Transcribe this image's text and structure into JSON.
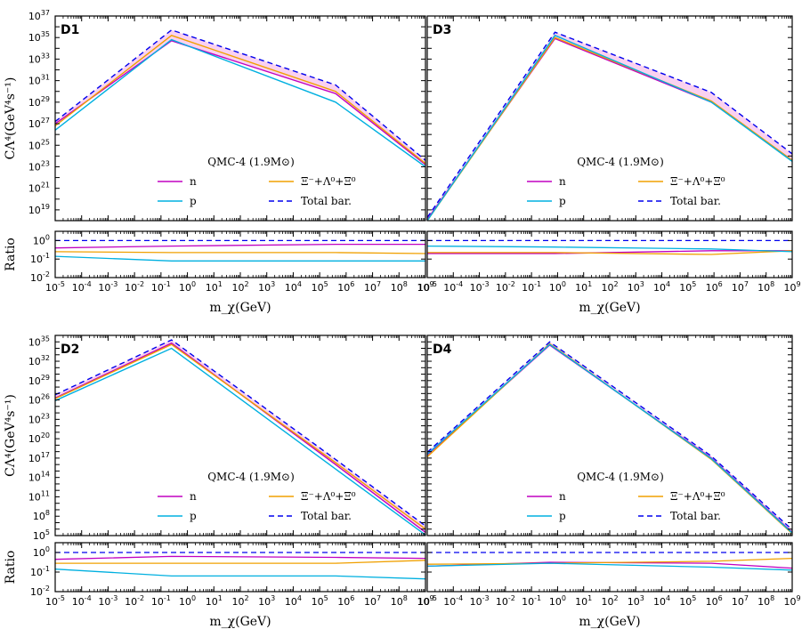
{
  "chart_data": [
    {
      "panel": "D1",
      "type": "line",
      "title": "QMC-4 (1.9M⊙)",
      "xlabel": "m_χ(GeV)",
      "ylabel": "CΛ⁴(GeV⁴s⁻¹)",
      "ratio_label": "Ratio",
      "xscale": "log",
      "yscale": "log",
      "xlim_exp": [
        -5,
        9
      ],
      "ylim_exp": [
        18,
        37
      ],
      "ratio_ylim_exp": [
        -2,
        0.5
      ],
      "x_exp": [
        -5,
        -0.6,
        5.6,
        9
      ],
      "series": [
        {
          "name": "n",
          "color": "#c000c0",
          "y_exp": [
            27.0,
            34.7,
            29.8,
            23.2
          ]
        },
        {
          "name": "Ξ⁻+Λ⁰+Ξ⁰",
          "color": "#f0a000",
          "y_exp": [
            26.8,
            35.2,
            30.0,
            23.3
          ]
        },
        {
          "name": "p",
          "color": "#00b0e0",
          "y_exp": [
            26.4,
            34.8,
            29.0,
            23.0
          ]
        },
        {
          "name": "Total bar.",
          "color": "#0000ee",
          "dashed": true,
          "y_exp": [
            27.2,
            35.7,
            30.6,
            23.6
          ]
        }
      ],
      "ratio_series": [
        {
          "name": "n",
          "y_exp": [
            -0.4,
            -0.3,
            -0.2,
            -0.2
          ]
        },
        {
          "name": "Ξ⁻+Λ⁰+Ξ⁰",
          "y_exp": [
            -0.6,
            -0.65,
            -0.65,
            -0.7
          ]
        },
        {
          "name": "p",
          "y_exp": [
            -0.85,
            -1.1,
            -1.1,
            -1.1
          ]
        },
        {
          "name": "Total bar.",
          "y_exp": [
            0.0,
            0.0,
            0.0,
            0.0
          ]
        }
      ],
      "legend": {
        "labels": [
          "n",
          "Ξ⁻+Λ⁰+Ξ⁰",
          "p",
          "Total bar."
        ]
      }
    },
    {
      "panel": "D3",
      "type": "line",
      "title": "QMC-4 (1.9M⊙)",
      "xlabel": "m_χ(GeV)",
      "ylabel": "",
      "ratio_label": "",
      "xscale": "log",
      "yscale": "log",
      "xlim_exp": [
        -5,
        9
      ],
      "ylim_exp": [
        18,
        37
      ],
      "ratio_ylim_exp": [
        -2,
        0.5
      ],
      "x_exp": [
        -5,
        -0.1,
        5.9,
        9
      ],
      "series": [
        {
          "name": "n",
          "color": "#c000c0",
          "y_exp": [
            18.1,
            34.9,
            29.0,
            23.6
          ]
        },
        {
          "name": "Ξ⁻+Λ⁰+Ξ⁰",
          "color": "#f0a000",
          "y_exp": [
            18.0,
            35.0,
            29.1,
            23.6
          ]
        },
        {
          "name": "p",
          "color": "#00b0e0",
          "y_exp": [
            18.0,
            35.2,
            29.0,
            23.5
          ]
        },
        {
          "name": "Total bar.",
          "color": "#0000ee",
          "dashed": true,
          "y_exp": [
            18.3,
            35.5,
            29.9,
            24.2
          ]
        }
      ],
      "ratio_series": [
        {
          "name": "n",
          "y_exp": [
            -0.7,
            -0.7,
            -0.55,
            -0.55
          ]
        },
        {
          "name": "Ξ⁻+Λ⁰+Ξ⁰",
          "y_exp": [
            -0.65,
            -0.65,
            -0.75,
            -0.55
          ]
        },
        {
          "name": "p",
          "y_exp": [
            -0.3,
            -0.35,
            -0.45,
            -0.6
          ]
        },
        {
          "name": "Total bar.",
          "y_exp": [
            0.0,
            0.0,
            0.0,
            0.0
          ]
        }
      ],
      "legend": {
        "labels": [
          "n",
          "Ξ⁻+Λ⁰+Ξ⁰",
          "p",
          "Total bar."
        ]
      }
    },
    {
      "panel": "D2",
      "type": "line",
      "title": "QMC-4 (1.9M⊙)",
      "xlabel": "m_χ(GeV)",
      "ylabel": "CΛ⁴(GeV⁴s⁻¹)",
      "ratio_label": "Ratio",
      "xscale": "log",
      "yscale": "log",
      "xlim_exp": [
        -5,
        9
      ],
      "ylim_exp": [
        5,
        36
      ],
      "ratio_ylim_exp": [
        -2,
        0.5
      ],
      "x_exp": [
        -5,
        -0.6,
        5.6,
        9
      ],
      "series": [
        {
          "name": "n",
          "color": "#c000c0",
          "y_exp": [
            26.3,
            34.8,
            16.0,
            5.5
          ]
        },
        {
          "name": "Ξ⁻+Λ⁰+Ξ⁰",
          "color": "#f0a000",
          "y_exp": [
            26.2,
            34.6,
            16.3,
            6.0
          ]
        },
        {
          "name": "p",
          "color": "#00b0e0",
          "y_exp": [
            25.9,
            34.0,
            15.3,
            5.1
          ]
        },
        {
          "name": "Total bar.",
          "color": "#0000ee",
          "dashed": true,
          "y_exp": [
            26.8,
            35.3,
            16.8,
            6.5
          ]
        }
      ],
      "ratio_series": [
        {
          "name": "n",
          "y_exp": [
            -0.35,
            -0.2,
            -0.25,
            -0.3
          ]
        },
        {
          "name": "Ξ⁻+Λ⁰+Ξ⁰",
          "y_exp": [
            -0.55,
            -0.55,
            -0.55,
            -0.4
          ]
        },
        {
          "name": "p",
          "y_exp": [
            -0.85,
            -1.2,
            -1.2,
            -1.35
          ]
        },
        {
          "name": "Total bar.",
          "y_exp": [
            0.0,
            0.0,
            0.0,
            0.0
          ]
        }
      ],
      "legend": {
        "labels": [
          "n",
          "Ξ⁻+Λ⁰+Ξ⁰",
          "p",
          "Total bar."
        ]
      }
    },
    {
      "panel": "D4",
      "type": "line",
      "title": "QMC-4 (1.9M⊙)",
      "xlabel": "m_χ(GeV)",
      "ylabel": "",
      "ratio_label": "",
      "xscale": "log",
      "yscale": "log",
      "xlim_exp": [
        -5,
        9
      ],
      "ylim_exp": [
        5,
        36
      ],
      "ratio_ylim_exp": [
        -2,
        0.5
      ],
      "x_exp": [
        -5,
        -0.3,
        5.9,
        9
      ],
      "series": [
        {
          "name": "n",
          "color": "#c000c0",
          "y_exp": [
            17.5,
            34.5,
            17.0,
            5.5
          ]
        },
        {
          "name": "Ξ⁻+Λ⁰+Ξ⁰",
          "color": "#f0a000",
          "y_exp": [
            17.2,
            34.7,
            16.8,
            5.3
          ]
        },
        {
          "name": "p",
          "color": "#00b0e0",
          "y_exp": [
            17.6,
            34.6,
            16.9,
            5.4
          ]
        },
        {
          "name": "Total bar.",
          "color": "#0000ee",
          "dashed": true,
          "y_exp": [
            17.9,
            35.0,
            17.3,
            5.9
          ]
        }
      ],
      "ratio_series": [
        {
          "name": "n",
          "y_exp": [
            -0.7,
            -0.5,
            -0.55,
            -0.8
          ]
        },
        {
          "name": "Ξ⁻+Λ⁰+Ξ⁰",
          "y_exp": [
            -0.6,
            -0.55,
            -0.45,
            -0.3
          ]
        },
        {
          "name": "p",
          "y_exp": [
            -0.7,
            -0.55,
            -0.75,
            -0.9
          ]
        },
        {
          "name": "Total bar.",
          "y_exp": [
            0.0,
            0.0,
            0.0,
            0.0
          ]
        }
      ],
      "legend": {
        "labels": [
          "n",
          "Ξ⁻+Λ⁰+Ξ⁰",
          "p",
          "Total bar."
        ]
      }
    }
  ]
}
